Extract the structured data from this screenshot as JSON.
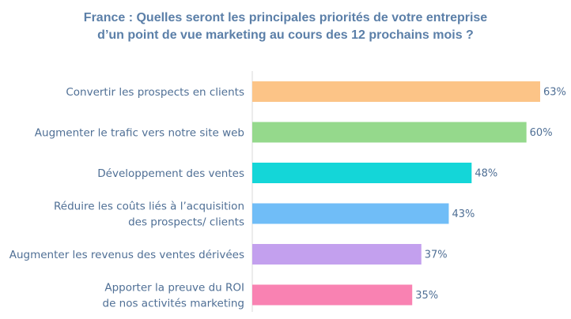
{
  "chart_data": {
    "type": "bar",
    "orientation": "horizontal",
    "title_lines": [
      "France : Quelles seront les principales priorités de votre entreprise",
      "d’un point de vue marketing au cours des 12 prochains mois ?"
    ],
    "categories": [
      [
        "Convertir les prospects en clients"
      ],
      [
        "Augmenter le trafic vers notre site web"
      ],
      [
        "Développement des ventes"
      ],
      [
        "Réduire les coûts liés à l’acquisition",
        "des prospects/ clients"
      ],
      [
        "Augmenter les revenus des ventes dérivées"
      ],
      [
        "Apporter la preuve du ROI",
        "de nos activités marketing"
      ]
    ],
    "values": [
      63,
      60,
      48,
      43,
      37,
      35
    ],
    "value_labels": [
      "63%",
      "60%",
      "48%",
      "43%",
      "37%",
      "35%"
    ],
    "unit": "%",
    "bar_colors": [
      "#fcc487",
      "#95d98c",
      "#14d6d8",
      "#70bdf7",
      "#c3a0ee",
      "#f982b2"
    ],
    "label_color": "#4f6f95",
    "title_color": "#5b7fa8",
    "axis_color": "#d9d9d9",
    "xlim": [
      0,
      63
    ],
    "grid": false,
    "legend": "none"
  }
}
